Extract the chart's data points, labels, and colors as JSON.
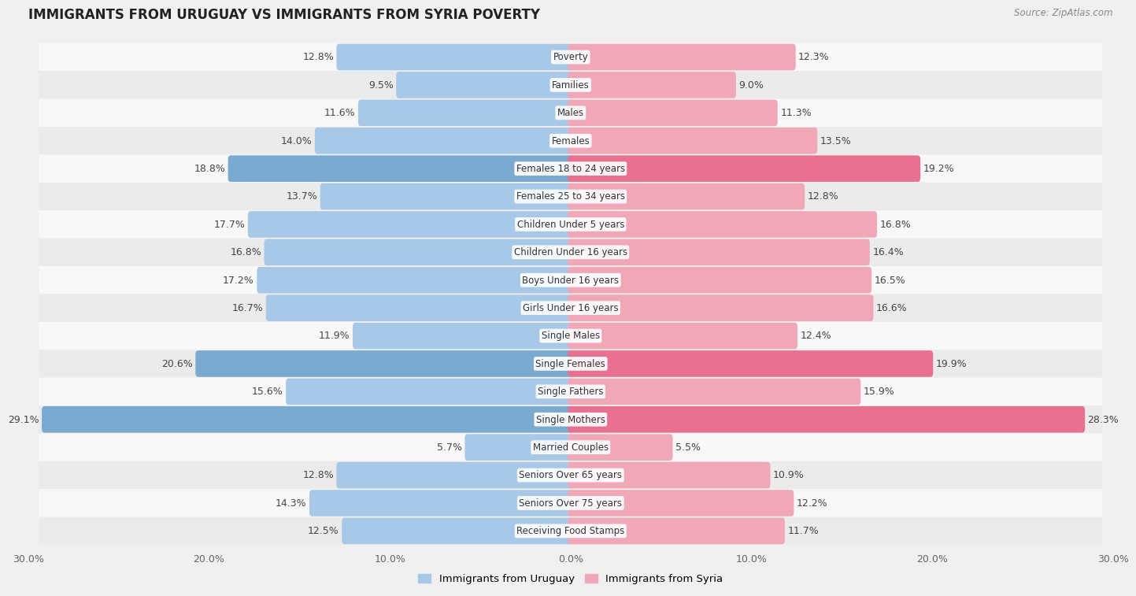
{
  "title": "IMMIGRANTS FROM URUGUAY VS IMMIGRANTS FROM SYRIA POVERTY",
  "source": "Source: ZipAtlas.com",
  "categories": [
    "Poverty",
    "Families",
    "Males",
    "Females",
    "Females 18 to 24 years",
    "Females 25 to 34 years",
    "Children Under 5 years",
    "Children Under 16 years",
    "Boys Under 16 years",
    "Girls Under 16 years",
    "Single Males",
    "Single Females",
    "Single Fathers",
    "Single Mothers",
    "Married Couples",
    "Seniors Over 65 years",
    "Seniors Over 75 years",
    "Receiving Food Stamps"
  ],
  "uruguay_values": [
    12.8,
    9.5,
    11.6,
    14.0,
    18.8,
    13.7,
    17.7,
    16.8,
    17.2,
    16.7,
    11.9,
    20.6,
    15.6,
    29.1,
    5.7,
    12.8,
    14.3,
    12.5
  ],
  "syria_values": [
    12.3,
    9.0,
    11.3,
    13.5,
    19.2,
    12.8,
    16.8,
    16.4,
    16.5,
    16.6,
    12.4,
    19.9,
    15.9,
    28.3,
    5.5,
    10.9,
    12.2,
    11.7
  ],
  "uruguay_color": "#a8c8e8",
  "syria_color": "#f0a8b8",
  "uruguay_highlight_color": "#7aaad0",
  "syria_highlight_color": "#e87090",
  "highlight_indices": [
    4,
    11,
    13
  ],
  "background_color": "#f0f0f0",
  "row_odd_color": "#f8f8f8",
  "row_even_color": "#ebebeb",
  "xlim": 30.0,
  "bar_height": 0.65,
  "legend_label_uruguay": "Immigrants from Uruguay",
  "legend_label_syria": "Immigrants from Syria",
  "label_fontsize": 9,
  "cat_fontsize": 8.5,
  "title_fontsize": 12
}
